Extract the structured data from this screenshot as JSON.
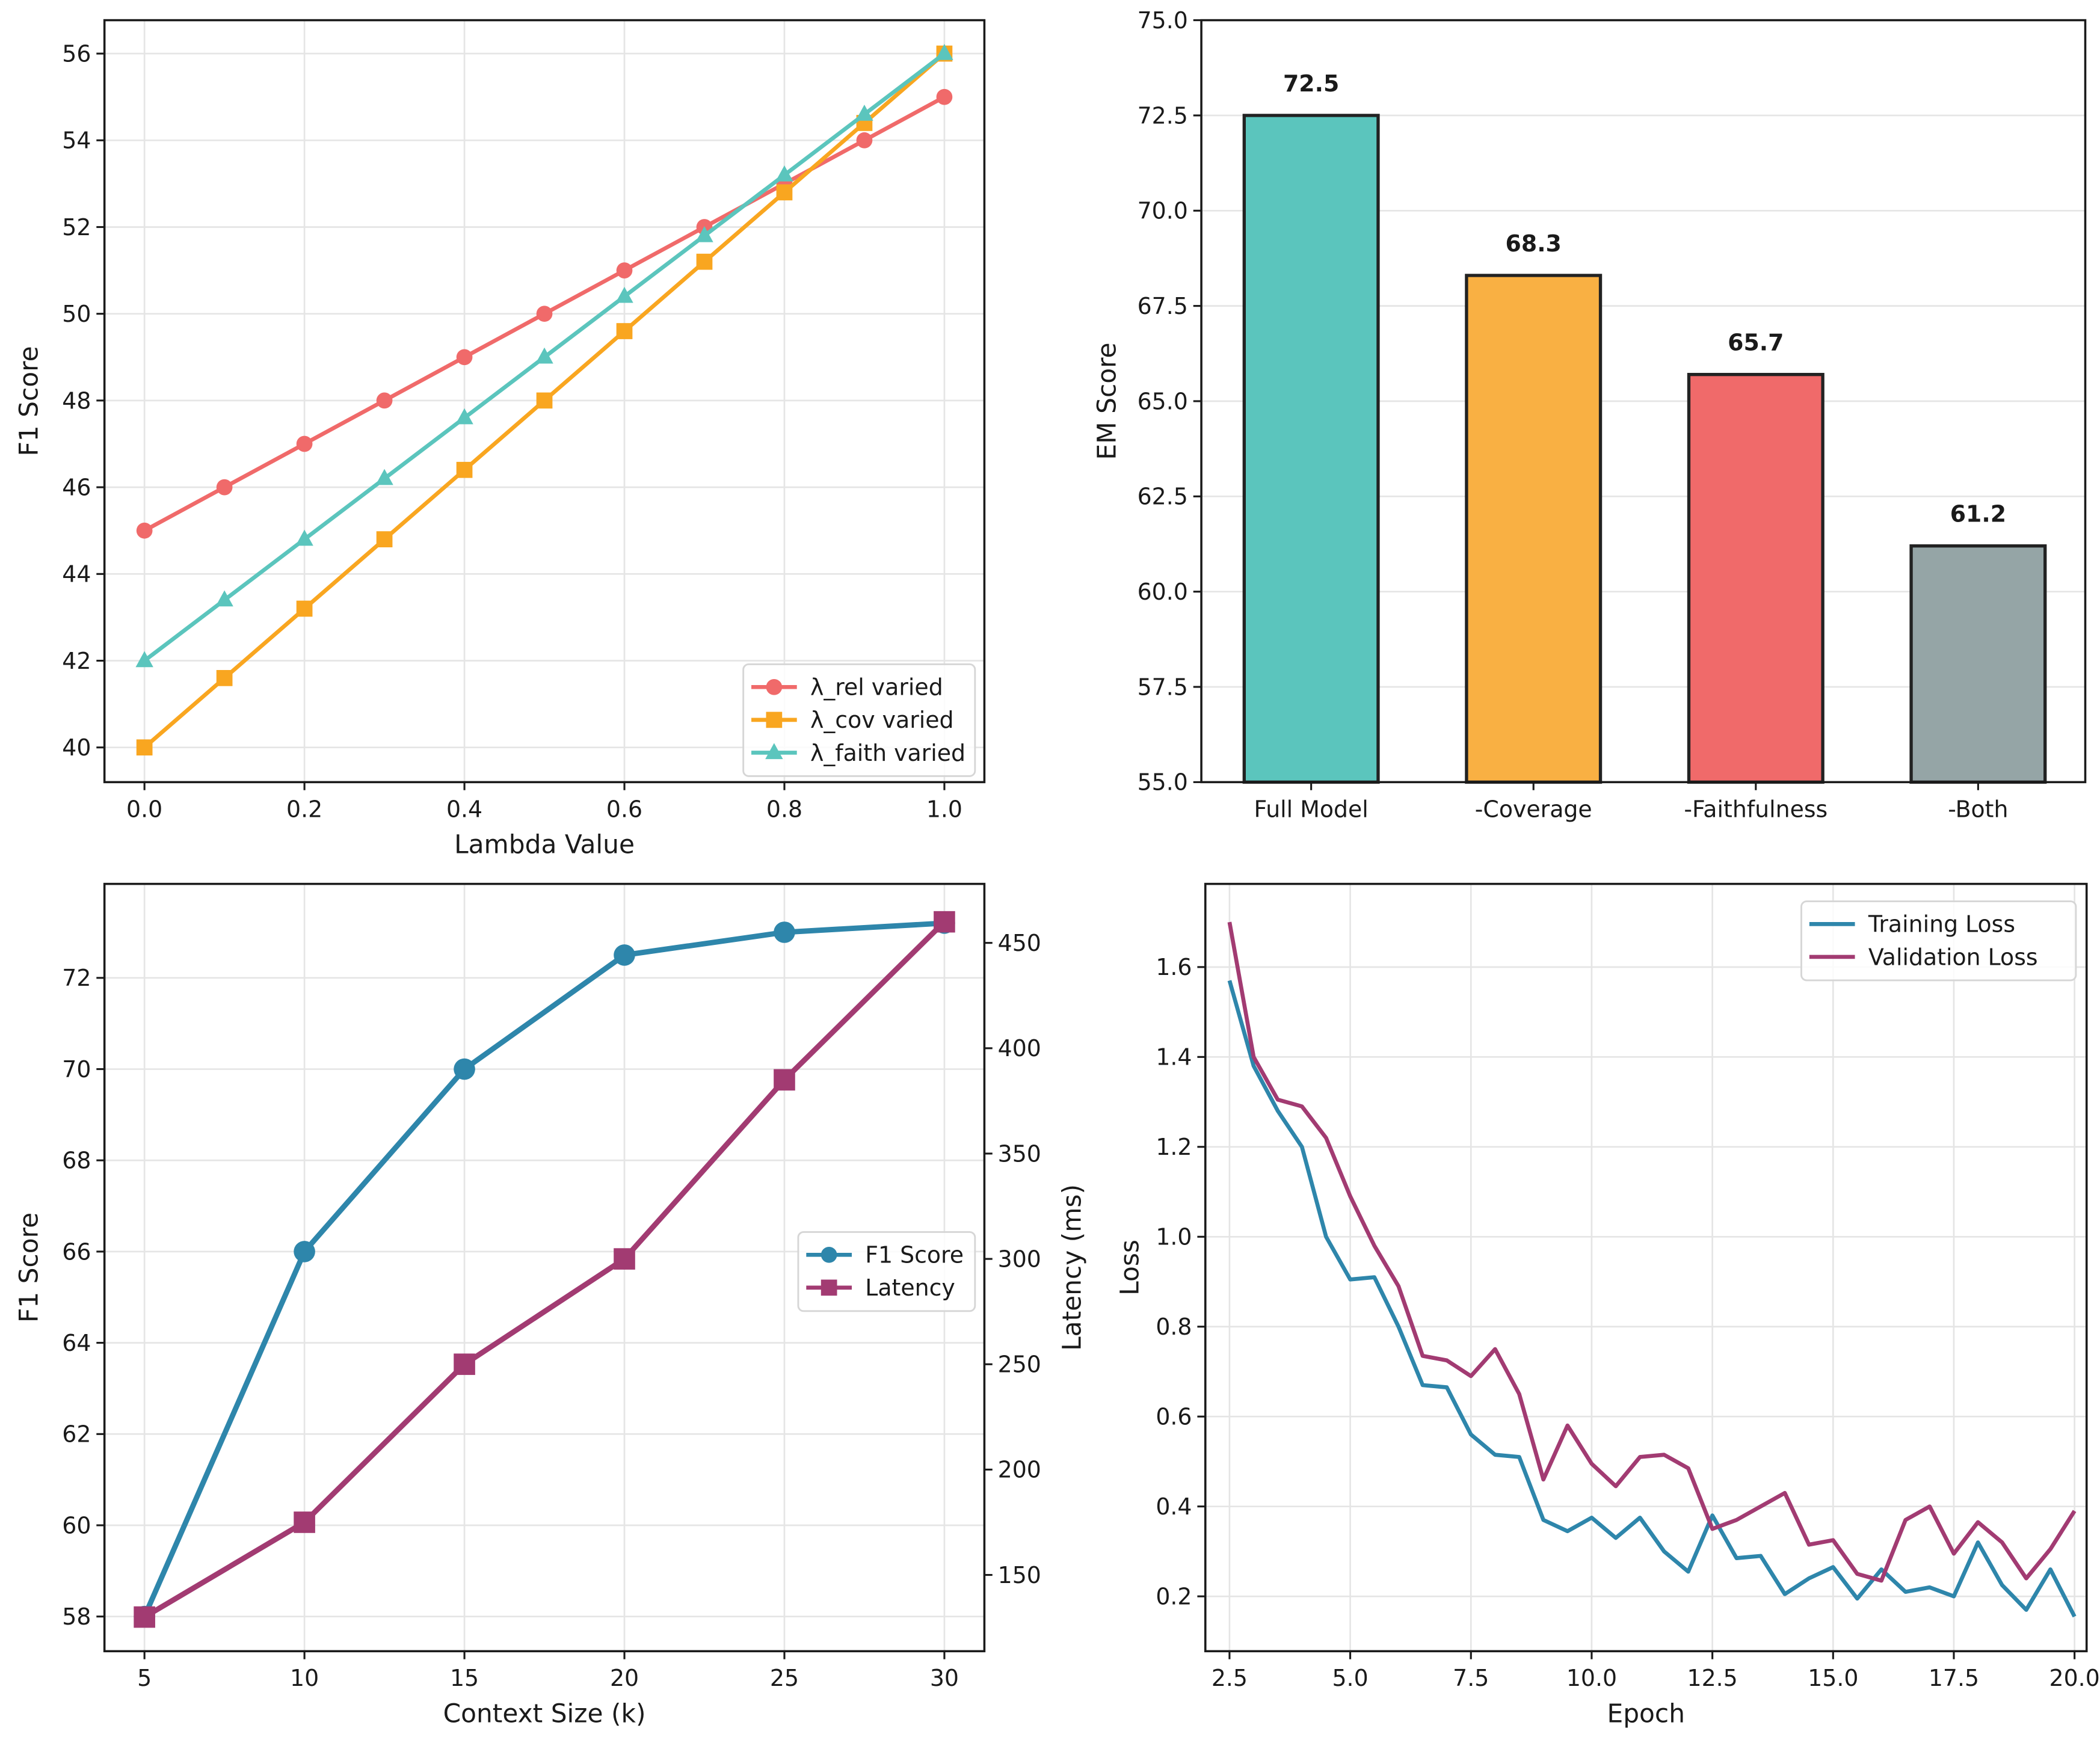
{
  "chart_data": [
    {
      "type": "line",
      "xlabel": "Lambda Value",
      "ylabel": "F1 Score",
      "xlim": [
        -0.05,
        1.05
      ],
      "ylim": [
        39.2,
        56.77
      ],
      "xticks": [
        "0.0",
        "0.2",
        "0.4",
        "0.6",
        "0.8",
        "1.0"
      ],
      "yticks": [
        "40",
        "42",
        "44",
        "46",
        "48",
        "50",
        "52",
        "54",
        "56"
      ],
      "grid": true,
      "legend_position": "lower-right",
      "x": [
        0.0,
        0.1,
        0.2,
        0.3,
        0.4,
        0.5,
        0.6,
        0.7,
        0.8,
        0.9,
        1.0
      ],
      "series": [
        {
          "name": "λ_rel varied",
          "color": "#f06a6a",
          "marker": "circle",
          "values": [
            45,
            46,
            47,
            48,
            49,
            50,
            51,
            52,
            53,
            54,
            55
          ]
        },
        {
          "name": "λ_cov varied",
          "color": "#f9a620",
          "marker": "square",
          "values": [
            40,
            41.6,
            43.2,
            44.8,
            46.4,
            48,
            49.6,
            51.2,
            52.8,
            54.4,
            56
          ]
        },
        {
          "name": "λ_faith varied",
          "color": "#5bc5bd",
          "marker": "triangle",
          "values": [
            42,
            43.4,
            44.8,
            46.2,
            47.6,
            49,
            50.4,
            51.8,
            53.2,
            54.6,
            56
          ]
        }
      ]
    },
    {
      "type": "bar",
      "ylabel": "EM Score",
      "ylim": [
        55,
        75
      ],
      "yticks": [
        "55.0",
        "57.5",
        "60.0",
        "62.5",
        "65.0",
        "67.5",
        "70.0",
        "72.5",
        "75.0"
      ],
      "grid": true,
      "categories": [
        "Full Model",
        "-Coverage",
        "-Faithfulness",
        "-Both"
      ],
      "values": [
        72.5,
        68.3,
        65.7,
        61.2
      ],
      "data_labels": [
        "72.5",
        "68.3",
        "65.7",
        "61.2"
      ],
      "colors": [
        "#5bc5bd",
        "#f9b043",
        "#f06a6a",
        "#95a5a6"
      ]
    },
    {
      "type": "line",
      "xlabel": "Context Size (k)",
      "ylabel": "F1 Score",
      "ylabel_right": "Latency (ms)",
      "xlim": [
        3.75,
        31.25
      ],
      "ylim": [
        57.24,
        74.06
      ],
      "ylim_right": [
        113.8,
        478
      ],
      "xticks": [
        "5",
        "10",
        "15",
        "20",
        "25",
        "30"
      ],
      "yticks": [
        "58",
        "60",
        "62",
        "64",
        "66",
        "68",
        "70",
        "72"
      ],
      "yticks_right": [
        "150",
        "200",
        "250",
        "300",
        "350",
        "400",
        "450"
      ],
      "grid": true,
      "legend_position": "center-right",
      "x": [
        5,
        10,
        15,
        20,
        25,
        30
      ],
      "series": [
        {
          "name": "F1 Score",
          "color": "#2e86ab",
          "marker": "circle",
          "axis": "left",
          "values": [
            58,
            66,
            70,
            72.5,
            73,
            73.2
          ]
        },
        {
          "name": "Latency",
          "color": "#a23b72",
          "marker": "square",
          "axis": "right",
          "values": [
            130,
            175,
            250,
            300,
            385,
            460
          ]
        }
      ]
    },
    {
      "type": "line",
      "xlabel": "Epoch",
      "ylabel": "Loss",
      "xlim": [
        2.0,
        20.25
      ],
      "ylim": [
        0.078,
        1.785
      ],
      "xticks": [
        "2.5",
        "5.0",
        "7.5",
        "10.0",
        "12.5",
        "15.0",
        "17.5",
        "20.0"
      ],
      "yticks": [
        "0.2",
        "0.4",
        "0.6",
        "0.8",
        "1.0",
        "1.2",
        "1.4",
        "1.6"
      ],
      "grid": true,
      "legend_position": "upper-right",
      "x": [
        2.5,
        3,
        3.5,
        4,
        4.5,
        5,
        5.5,
        6,
        6.5,
        7,
        7.5,
        8,
        8.5,
        9,
        9.5,
        10,
        10.5,
        11,
        11.5,
        12,
        12.5,
        13,
        13.5,
        14,
        14.5,
        15,
        15.5,
        16,
        16.5,
        17,
        17.5,
        18,
        18.5,
        19,
        19.5,
        20
      ],
      "series": [
        {
          "name": "Training Loss",
          "color": "#2e86ab",
          "values": [
            1.57,
            1.38,
            1.28,
            1.2,
            1.0,
            0.905,
            0.91,
            0.8,
            0.67,
            0.665,
            0.56,
            0.515,
            0.51,
            0.37,
            0.345,
            0.375,
            0.33,
            0.375,
            0.3,
            0.255,
            0.38,
            0.285,
            0.29,
            0.205,
            0.24,
            0.265,
            0.195,
            0.26,
            0.21,
            0.22,
            0.2,
            0.32,
            0.225,
            0.17,
            0.26,
            0.155
          ]
        },
        {
          "name": "Validation Loss",
          "color": "#a23b72",
          "values": [
            1.7,
            1.4,
            1.305,
            1.29,
            1.22,
            1.09,
            0.98,
            0.89,
            0.735,
            0.725,
            0.69,
            0.75,
            0.65,
            0.46,
            0.58,
            0.495,
            0.445,
            0.51,
            0.515,
            0.485,
            0.35,
            0.37,
            0.4,
            0.43,
            0.315,
            0.325,
            0.25,
            0.235,
            0.37,
            0.4,
            0.295,
            0.365,
            0.32,
            0.24,
            0.305,
            0.39
          ]
        }
      ]
    }
  ]
}
